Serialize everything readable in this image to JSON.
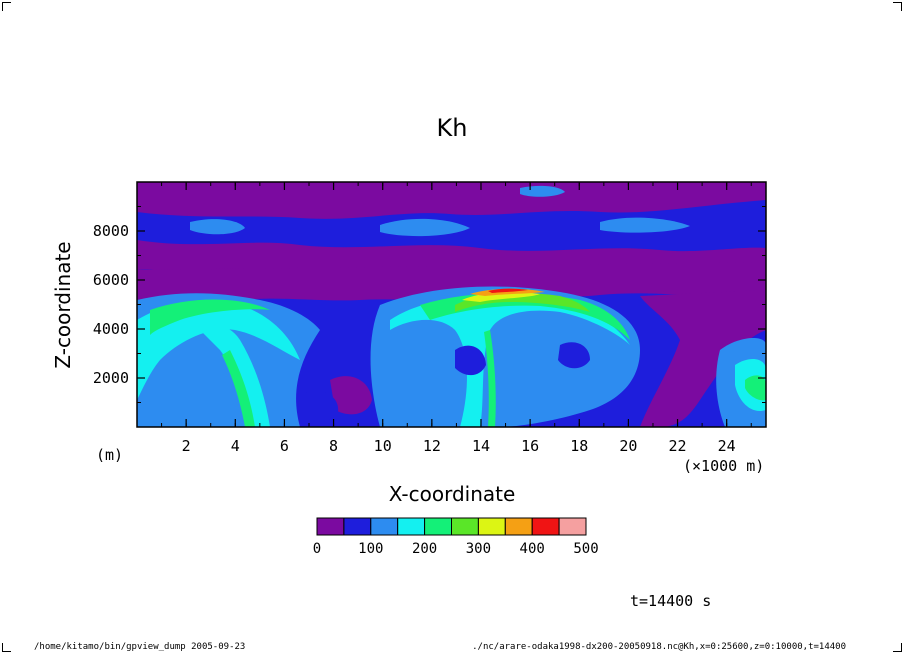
{
  "chart_data": {
    "type": "heatmap",
    "title": "Kh",
    "xlabel": "X-coordinate",
    "ylabel": "Z-coordinate",
    "x_unit_label": "(×1000 m)",
    "y_unit_label": "(m)",
    "x_ticks": [
      "2",
      "4",
      "6",
      "8",
      "10",
      "12",
      "14",
      "16",
      "18",
      "20",
      "22",
      "24"
    ],
    "y_ticks": [
      "2000",
      "4000",
      "6000",
      "8000"
    ],
    "x_tick_values": [
      2,
      4,
      6,
      8,
      10,
      12,
      14,
      16,
      18,
      20,
      22,
      24
    ],
    "y_tick_values": [
      2000,
      4000,
      6000,
      8000
    ],
    "xlim": [
      0,
      25.6
    ],
    "ylim": [
      0,
      10000
    ],
    "colorbar": {
      "levels": [
        "0",
        "100",
        "200",
        "300",
        "400",
        "500"
      ],
      "level_values": [
        0,
        100,
        200,
        300,
        400,
        500
      ],
      "colors": [
        "#7b0aa0",
        "#1e1edc",
        "#2d8cf0",
        "#14f0f0",
        "#14f078",
        "#5ae628",
        "#dcf514",
        "#f5a014",
        "#f01414",
        "#f5a0a0"
      ]
    },
    "annotations": {
      "time": "t=14400 s"
    }
  },
  "footer": {
    "left": "/home/kitamo/bin/gpview_dump  2005-09-23",
    "right": "./nc/arare-odaka1998-dx200-20050918.nc@Kh,x=0:25600,z=0:10000,t=14400"
  }
}
